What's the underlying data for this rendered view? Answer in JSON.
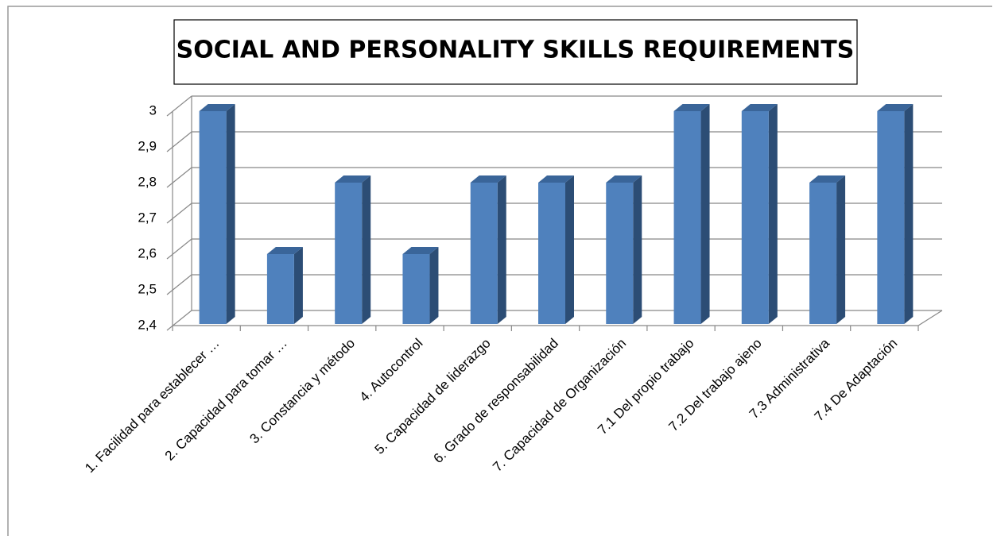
{
  "chart_data": {
    "type": "bar3d",
    "title": "SOCIAL AND PERSONALITY SKILLS REQUIREMENTS",
    "categories": [
      "1. Facilidad para establecer …",
      "2. Capacidad para tomar …",
      "3. Constancia y método",
      "4. Autocontrol",
      "5. Capacidad de liderazgo",
      "6. Grado de responsabilidad",
      "7. Capacidad de Organización",
      "7.1 Del propio trabajo",
      "7.2 Del trabajo ajeno",
      "7.3 Administrativa",
      "7.4 De Adaptación"
    ],
    "values": [
      3,
      2.6,
      2.8,
      2.6,
      2.8,
      2.8,
      2.8,
      3,
      3,
      2.8,
      3
    ],
    "color": "#4f81bd",
    "ylim": [
      2.4,
      3
    ],
    "yticks": [
      {
        "value": 2.4,
        "label": "2,4"
      },
      {
        "value": 2.5,
        "label": "2,5"
      },
      {
        "value": 2.6,
        "label": "2,6"
      },
      {
        "value": 2.7,
        "label": "2,7"
      },
      {
        "value": 2.8,
        "label": "2,8"
      },
      {
        "value": 2.9,
        "label": "2,9"
      },
      3
    ],
    "grid": true
  }
}
